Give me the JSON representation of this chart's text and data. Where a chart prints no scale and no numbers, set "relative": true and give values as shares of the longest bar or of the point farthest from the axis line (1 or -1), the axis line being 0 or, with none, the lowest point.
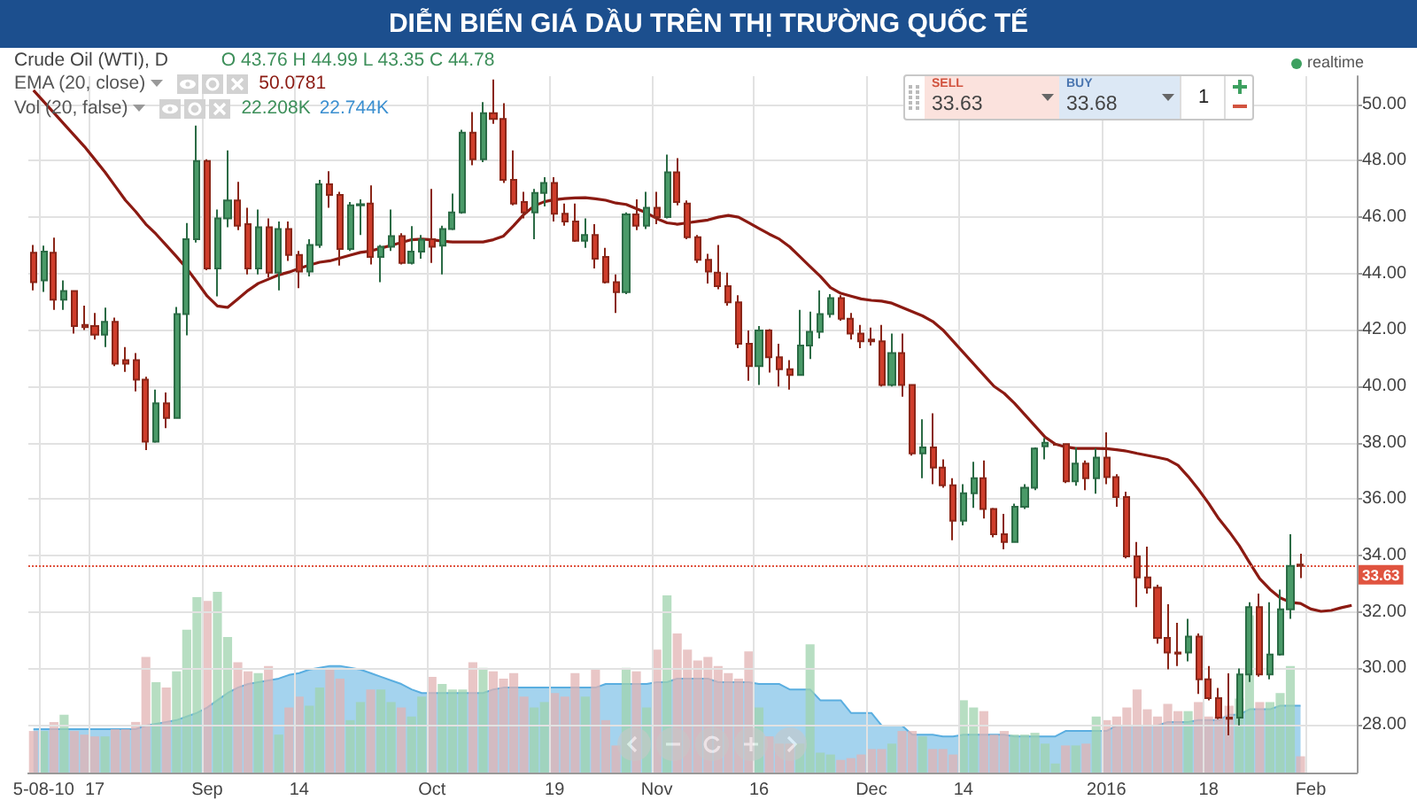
{
  "chart_data": [
    {
      "type": "candlestick",
      "title": "DIỄN BIẾN GIÁ DẦU TRÊN THỊ TRƯỜNG QUỐC TẾ",
      "categories": [
        null,
        "5-08-10",
        null,
        null,
        null,
        null,
        "17",
        null,
        null,
        null,
        null,
        null,
        null,
        null,
        null,
        null,
        null,
        "Sep",
        null,
        null,
        null,
        null,
        null,
        null,
        null,
        null,
        "14",
        null,
        null,
        null,
        null,
        null,
        null,
        null,
        null,
        null,
        null,
        null,
        null,
        "Oct",
        null,
        null,
        null,
        null,
        null,
        null,
        null,
        null,
        null,
        null,
        null,
        "19",
        null,
        null,
        null,
        null,
        null,
        null,
        null,
        null,
        null,
        "Nov",
        null,
        null,
        null,
        null,
        null,
        null,
        null,
        null,
        null,
        "16",
        null,
        null,
        null,
        null,
        null,
        null,
        null,
        null,
        null,
        null,
        "Dec",
        null,
        null,
        null,
        null,
        null,
        null,
        null,
        null,
        "14",
        null,
        null,
        null,
        null,
        null,
        null,
        null,
        null,
        null,
        null,
        null,
        null,
        null,
        "2016",
        null,
        null,
        null,
        null,
        null,
        null,
        null,
        null,
        null,
        "18",
        null,
        null,
        null,
        null,
        null,
        null,
        null,
        null,
        null,
        "Feb",
        null,
        null,
        null,
        null
      ],
      "ohlc": [
        [
          44.74,
          45.01,
          43.4,
          43.69
        ],
        [
          43.76,
          44.99,
          43.35,
          44.78
        ],
        [
          44.74,
          45.27,
          42.71,
          43.07
        ],
        [
          43.07,
          43.76,
          42.71,
          43.38
        ],
        [
          43.38,
          43.4,
          41.87,
          42.14
        ],
        [
          42.18,
          42.86,
          42.0,
          42.1
        ],
        [
          42.14,
          42.6,
          41.66,
          41.83
        ],
        [
          41.83,
          42.79,
          41.39,
          42.29
        ],
        [
          42.29,
          42.44,
          40.72,
          40.8
        ],
        [
          40.93,
          41.39,
          40.51,
          40.8
        ],
        [
          40.93,
          41.18,
          39.82,
          40.24
        ],
        [
          40.24,
          40.34,
          37.74,
          38.04
        ],
        [
          38.04,
          39.88,
          38.0,
          39.4
        ],
        [
          39.4,
          39.78,
          38.52,
          38.88
        ],
        [
          38.88,
          42.81,
          38.85,
          42.56
        ],
        [
          42.56,
          45.79,
          41.81,
          45.22
        ],
        [
          45.22,
          49.25,
          45.1,
          47.99
        ],
        [
          47.99,
          48.05,
          44.12,
          44.18
        ],
        [
          44.18,
          46.27,
          43.19,
          45.96
        ],
        [
          45.96,
          48.37,
          45.64,
          46.59
        ],
        [
          46.59,
          47.25,
          45.54,
          45.7
        ],
        [
          45.75,
          46.33,
          43.97,
          44.18
        ],
        [
          44.18,
          46.27,
          43.97,
          45.64
        ],
        [
          45.64,
          45.96,
          43.86,
          44.03
        ],
        [
          44.03,
          45.85,
          43.4,
          45.58
        ],
        [
          45.58,
          45.85,
          44.45,
          44.66
        ],
        [
          44.66,
          44.8,
          43.48,
          44.07
        ],
        [
          44.07,
          45.22,
          43.9,
          45.01
        ],
        [
          45.01,
          47.32,
          44.91,
          47.17
        ],
        [
          47.17,
          47.63,
          46.33,
          46.79
        ],
        [
          46.79,
          46.9,
          44.28,
          44.87
        ],
        [
          44.87,
          46.54,
          44.8,
          46.42
        ],
        [
          46.42,
          46.63,
          45.37,
          46.46
        ],
        [
          46.48,
          47.13,
          44.32,
          44.59
        ],
        [
          44.59,
          45.01,
          43.69,
          44.95
        ],
        [
          44.95,
          46.27,
          44.8,
          45.33
        ],
        [
          45.33,
          45.43,
          44.32,
          44.38
        ],
        [
          44.38,
          45.68,
          44.32,
          44.78
        ],
        [
          44.78,
          45.37,
          44.53,
          45.2
        ],
        [
          45.22,
          47.0,
          44.38,
          44.95
        ],
        [
          44.99,
          45.7,
          43.97,
          45.58
        ],
        [
          45.58,
          46.84,
          45.54,
          46.17
        ],
        [
          46.17,
          49.1,
          46.12,
          49.0
        ],
        [
          49.0,
          49.73,
          47.84,
          48.05
        ],
        [
          48.05,
          50.08,
          47.95,
          49.69
        ],
        [
          49.69,
          50.88,
          49.31,
          49.48
        ],
        [
          49.48,
          50.04,
          47.21,
          47.32
        ],
        [
          47.32,
          48.37,
          46.42,
          46.48
        ],
        [
          46.54,
          46.9,
          45.96,
          46.17
        ],
        [
          46.17,
          47.0,
          45.22,
          46.86
        ],
        [
          46.86,
          47.42,
          46.38,
          47.21
        ],
        [
          47.21,
          47.42,
          45.85,
          46.12
        ],
        [
          46.12,
          46.48,
          45.7,
          45.85
        ],
        [
          45.85,
          46.48,
          45.12,
          45.16
        ],
        [
          45.16,
          45.96,
          44.91,
          45.37
        ],
        [
          45.37,
          45.75,
          44.18,
          44.53
        ],
        [
          44.59,
          44.91,
          43.65,
          43.69
        ],
        [
          43.69,
          43.97,
          42.6,
          43.34
        ],
        [
          43.34,
          46.17,
          43.27,
          46.1
        ],
        [
          46.1,
          46.63,
          45.54,
          45.7
        ],
        [
          45.7,
          46.9,
          45.58,
          46.33
        ],
        [
          46.33,
          46.9,
          45.75,
          46.0
        ],
        [
          46.0,
          48.22,
          45.96,
          47.59
        ],
        [
          47.59,
          48.09,
          46.42,
          46.54
        ],
        [
          46.48,
          46.59,
          45.22,
          45.29
        ],
        [
          45.29,
          45.37,
          44.38,
          44.49
        ],
        [
          44.49,
          44.7,
          43.65,
          44.07
        ],
        [
          44.03,
          45.01,
          43.44,
          43.55
        ],
        [
          43.55,
          44.03,
          42.86,
          42.98
        ],
        [
          42.98,
          43.23,
          41.35,
          41.51
        ],
        [
          41.51,
          41.98,
          40.2,
          40.72
        ],
        [
          40.72,
          42.14,
          40.05,
          41.98
        ],
        [
          41.98,
          42.03,
          40.49,
          41.03
        ],
        [
          41.03,
          41.51,
          39.99,
          40.61
        ],
        [
          40.61,
          40.93,
          39.88,
          40.4
        ],
        [
          40.4,
          42.71,
          40.38,
          41.45
        ],
        [
          41.45,
          42.65,
          40.97,
          41.93
        ],
        [
          41.93,
          43.4,
          41.7,
          42.56
        ],
        [
          42.56,
          43.27,
          42.44,
          43.13
        ],
        [
          43.13,
          43.23,
          42.33,
          42.4
        ],
        [
          42.4,
          42.6,
          41.66,
          41.87
        ],
        [
          41.87,
          42.18,
          41.35,
          41.6
        ],
        [
          41.66,
          42.08,
          41.45,
          41.6
        ],
        [
          41.6,
          42.18,
          39.99,
          40.05
        ],
        [
          40.05,
          41.87,
          39.99,
          41.18
        ],
        [
          41.18,
          41.87,
          39.63,
          40.05
        ],
        [
          40.05,
          40.05,
          37.54,
          37.62
        ],
        [
          37.62,
          38.83,
          36.74,
          37.83
        ],
        [
          37.83,
          39.04,
          36.53,
          37.12
        ],
        [
          37.12,
          37.41,
          36.4,
          36.49
        ],
        [
          36.49,
          36.74,
          34.54,
          35.23
        ],
        [
          35.23,
          36.53,
          35.07,
          36.21
        ],
        [
          36.21,
          37.32,
          35.69,
          36.74
        ],
        [
          36.74,
          37.37,
          35.31,
          35.65
        ],
        [
          35.65,
          35.69,
          34.64,
          34.75
        ],
        [
          34.75,
          35.48,
          34.22,
          34.48
        ],
        [
          34.48,
          35.84,
          34.48,
          35.73
        ],
        [
          35.73,
          36.53,
          35.65,
          36.4
        ],
        [
          36.4,
          37.83,
          36.32,
          37.79
        ],
        [
          37.87,
          38.16,
          37.41,
          38.0
        ],
        [
          37.93,
          37.98,
          37.9,
          37.93
        ],
        [
          37.95,
          37.95,
          36.57,
          36.63
        ],
        [
          36.63,
          37.83,
          36.47,
          37.26
        ],
        [
          37.26,
          37.37,
          36.32,
          36.74
        ],
        [
          36.74,
          37.79,
          36.19,
          37.47
        ],
        [
          37.47,
          38.37,
          36.53,
          36.78
        ],
        [
          36.78,
          36.88,
          35.73,
          36.07
        ],
        [
          36.07,
          36.26,
          33.9,
          33.97
        ],
        [
          33.97,
          34.48,
          32.17,
          33.22
        ],
        [
          33.22,
          34.31,
          32.65,
          32.86
        ],
        [
          32.86,
          32.96,
          30.87,
          31.08
        ],
        [
          31.08,
          32.27,
          29.96,
          30.56
        ],
        [
          30.56,
          31.61,
          30.08,
          30.52
        ],
        [
          30.56,
          31.75,
          30.24,
          31.12
        ],
        [
          31.12,
          31.23,
          29.09,
          29.61
        ],
        [
          29.61,
          30.08,
          28.86,
          28.94
        ],
        [
          28.94,
          29.3,
          28.19,
          28.25
        ],
        [
          28.25,
          29.82,
          27.62,
          28.21
        ],
        [
          28.25,
          29.99,
          27.97,
          29.78
        ],
        [
          29.78,
          32.34,
          29.51,
          32.17
        ],
        [
          32.17,
          32.65,
          29.7,
          29.78
        ],
        [
          29.78,
          32.34,
          29.61,
          30.49
        ],
        [
          30.49,
          32.79,
          30.45,
          32.09
        ],
        [
          32.09,
          34.75,
          31.75,
          33.63
        ],
        [
          33.68,
          34.06,
          33.2,
          33.63
        ],
        null,
        null,
        null,
        null,
        null
      ],
      "series": [
        {
          "name": "EMA (20, close)",
          "type": "line",
          "color": "#8b1a12",
          "values": [
            50.5,
            50.1,
            49.7,
            49.3,
            48.9,
            48.5,
            48.05,
            47.6,
            47.1,
            46.6,
            46.2,
            45.75,
            45.4,
            45.0,
            44.6,
            44.18,
            43.7,
            43.2,
            42.85,
            42.8,
            43.1,
            43.4,
            43.65,
            43.8,
            43.95,
            44.05,
            44.18,
            44.3,
            44.4,
            44.45,
            44.55,
            44.65,
            44.75,
            44.8,
            44.9,
            45.0,
            45.1,
            45.2,
            45.22,
            45.2,
            45.15,
            45.12,
            45.12,
            45.12,
            45.12,
            45.2,
            45.33,
            45.7,
            46.1,
            46.4,
            46.55,
            46.62,
            46.66,
            46.68,
            46.69,
            46.65,
            46.6,
            46.5,
            46.45,
            46.3,
            46.15,
            45.95,
            45.8,
            45.75,
            45.8,
            45.85,
            45.9,
            46.0,
            46.06,
            46.0,
            45.8,
            45.6,
            45.4,
            45.22,
            44.95,
            44.6,
            44.25,
            43.9,
            43.5,
            43.3,
            43.2,
            43.1,
            43.05,
            43.02,
            42.95,
            42.8,
            42.65,
            42.5,
            42.3,
            42.0,
            41.6,
            41.2,
            40.8,
            40.4,
            40.0,
            39.75,
            39.4,
            39.0,
            38.6,
            38.2,
            37.95,
            37.85,
            37.8,
            37.8,
            37.8,
            37.79,
            37.75,
            37.7,
            37.62,
            37.55,
            37.48,
            37.4,
            37.2,
            36.8,
            36.35,
            35.85,
            35.3,
            34.85,
            34.35,
            33.75,
            33.18,
            32.8,
            32.5,
            32.34,
            32.3,
            32.1,
            32.02,
            32.05,
            32.15,
            32.23
          ]
        }
      ],
      "ylim": [
        26.3,
        51.0
      ],
      "yticks": [
        {
          "value": 28,
          "label": "28.00"
        },
        {
          "value": 30,
          "label": "30.00"
        },
        {
          "value": 32,
          "label": "32.00"
        },
        {
          "value": 34,
          "label": "34.00"
        },
        {
          "value": 36,
          "label": "36.00"
        },
        {
          "value": 38,
          "label": "38.00"
        },
        {
          "value": 40,
          "label": "40.00"
        },
        {
          "value": 42,
          "label": "42.00"
        },
        {
          "value": 44,
          "label": "44.00"
        },
        {
          "value": 46,
          "label": "46.00"
        },
        {
          "value": 48,
          "label": "48.00"
        },
        {
          "value": 50,
          "label": "50.00"
        }
      ],
      "ref_lines": [
        {
          "axis": "y",
          "value": 33.63,
          "label": "33.63",
          "color": "#e0533f",
          "line_style": "dotted"
        }
      ],
      "grid": true,
      "legend": "top left",
      "annotations": [
        "Crude Oil (WTI), D",
        "O 43.76 H 44.99 L 43.35 C 44.78",
        "50.0781",
        "SELL",
        "33.63",
        "BUY",
        "33.68",
        "1",
        "realtime"
      ]
    },
    {
      "type": "bar",
      "relative": true,
      "legend": "top left",
      "categories": [
        null,
        null,
        null,
        null,
        null,
        null,
        null,
        null,
        null,
        null,
        null,
        null,
        null,
        null,
        null,
        null,
        null,
        null,
        null,
        null,
        null,
        null,
        null,
        null,
        null,
        null,
        null,
        null,
        null,
        null,
        null,
        null,
        null,
        null,
        null,
        null,
        null,
        null,
        null,
        null,
        null,
        null,
        null,
        null,
        null,
        null,
        null,
        null,
        null,
        null,
        null,
        null,
        null,
        null,
        null,
        null,
        null,
        null,
        null,
        null,
        null,
        null,
        null,
        null,
        null,
        null,
        null,
        null,
        null,
        null,
        null,
        null,
        null,
        null,
        null,
        null,
        null,
        null,
        null,
        null,
        null,
        null,
        null,
        null,
        null,
        null,
        null,
        null,
        null,
        null,
        null,
        null,
        null,
        null,
        null,
        null,
        null,
        null,
        null,
        null,
        null,
        null,
        null,
        null,
        null,
        null,
        null,
        null,
        null,
        null,
        null,
        null,
        null,
        null,
        null,
        null,
        null,
        null,
        null,
        null,
        null,
        null,
        null,
        null,
        null,
        null,
        null,
        null,
        null,
        null
      ],
      "series": [
        {
          "name": "Vol (20, false)",
          "type": "bar",
          "values": [
            0.23,
            0.23,
            0.28,
            0.32,
            0.23,
            0.21,
            0.2,
            0.2,
            0.24,
            0.24,
            0.28,
            0.64,
            0.5,
            0.47,
            0.56,
            0.79,
            0.97,
            0.95,
            1,
            0.75,
            0.61,
            0.56,
            0.55,
            0.59,
            0.21,
            0.36,
            0.42,
            0.37,
            0.47,
            0.57,
            0.52,
            0.29,
            0.39,
            0.46,
            0.46,
            0.39,
            0.36,
            0.31,
            0.42,
            0.53,
            0.49,
            0.46,
            0.46,
            0.61,
            0.58,
            0.56,
            0.52,
            0.55,
            0.42,
            0.36,
            0.39,
            0.44,
            0.42,
            0.55,
            0.42,
            0.57,
            0.29,
            0.15,
            0.58,
            0.56,
            0.36,
            0.68,
            0.98,
            0.77,
            0.68,
            0.62,
            0.64,
            0.59,
            0.55,
            0.52,
            0.67,
            0.36,
            0.2,
            0.16,
            0.16,
            0.16,
            0.71,
            0.11,
            0.1,
            0.07,
            0.08,
            0.1,
            0.13,
            0.13,
            0.16,
            0.23,
            0.23,
            0.2,
            0.13,
            0.13,
            0.1,
            0.4,
            0.36,
            0.34,
            0.21,
            0.23,
            0.21,
            0.21,
            0.22,
            0.16,
            0.05,
            0.15,
            0.15,
            0.16,
            0.31,
            0.29,
            0.31,
            0.36,
            0.46,
            0.35,
            0.31,
            0.38,
            0.34,
            0.34,
            0.39,
            0.31,
            0.31,
            0.37,
            0.41,
            0.87,
            0.39,
            0.39,
            0.44,
            0.59,
            0.09,
            null,
            null,
            null,
            null,
            null
          ],
          "colors": [
            "#e2b3b3",
            "#9fd3ae",
            "#e2b3b3",
            "#9fd3ae",
            "#e2b3b3",
            "#e2b3b3",
            "#e2b3b3",
            "#9fd3ae",
            "#e2b3b3",
            "#e2b3b3",
            "#e2b3b3",
            "#e2b3b3",
            "#9fd3ae",
            "#e2b3b3",
            "#9fd3ae",
            "#9fd3ae",
            "#9fd3ae",
            "#e2b3b3",
            "#9fd3ae",
            "#9fd3ae",
            "#e2b3b3",
            "#e2b3b3",
            "#9fd3ae",
            "#e2b3b3",
            "#9fd3ae",
            "#e2b3b3",
            "#e2b3b3",
            "#9fd3ae",
            "#9fd3ae",
            "#e2b3b3",
            "#e2b3b3",
            "#9fd3ae",
            "#9fd3ae",
            "#e2b3b3",
            "#9fd3ae",
            "#9fd3ae",
            "#e2b3b3",
            "#9fd3ae",
            "#9fd3ae",
            "#e2b3b3",
            "#9fd3ae",
            "#9fd3ae",
            "#9fd3ae",
            "#e2b3b3",
            "#9fd3ae",
            "#e2b3b3",
            "#e2b3b3",
            "#e2b3b3",
            "#e2b3b3",
            "#9fd3ae",
            "#9fd3ae",
            "#e2b3b3",
            "#e2b3b3",
            "#e2b3b3",
            "#9fd3ae",
            "#e2b3b3",
            "#e2b3b3",
            "#e2b3b3",
            "#9fd3ae",
            "#e2b3b3",
            "#9fd3ae",
            "#e2b3b3",
            "#9fd3ae",
            "#e2b3b3",
            "#e2b3b3",
            "#e2b3b3",
            "#e2b3b3",
            "#e2b3b3",
            "#e2b3b3",
            "#e2b3b3",
            "#e2b3b3",
            "#9fd3ae",
            "#e2b3b3",
            "#e2b3b3",
            "#e2b3b3",
            "#9fd3ae",
            "#9fd3ae",
            "#9fd3ae",
            "#9fd3ae",
            "#e2b3b3",
            "#e2b3b3",
            "#e2b3b3",
            "#e2b3b3",
            "#e2b3b3",
            "#9fd3ae",
            "#e2b3b3",
            "#e2b3b3",
            "#9fd3ae",
            "#e2b3b3",
            "#e2b3b3",
            "#e2b3b3",
            "#9fd3ae",
            "#9fd3ae",
            "#e2b3b3",
            "#e2b3b3",
            "#e2b3b3",
            "#9fd3ae",
            "#9fd3ae",
            "#9fd3ae",
            "#9fd3ae",
            "#9fd3ae",
            "#e2b3b3",
            "#9fd3ae",
            "#e2b3b3",
            "#9fd3ae",
            "#e2b3b3",
            "#e2b3b3",
            "#e2b3b3",
            "#e2b3b3",
            "#e2b3b3",
            "#e2b3b3",
            "#e2b3b3",
            "#e2b3b3",
            "#9fd3ae",
            "#e2b3b3",
            "#e2b3b3",
            "#e2b3b3",
            "#e2b3b3",
            "#9fd3ae",
            "#9fd3ae",
            "#e2b3b3",
            "#9fd3ae",
            "#9fd3ae",
            "#9fd3ae",
            "#e2b3b3",
            null,
            null,
            null,
            null,
            null
          ]
        },
        {
          "type": "area",
          "color": "#5aaee0",
          "values": [
            0.24,
            0.24,
            0.24,
            0.24,
            0.24,
            0.24,
            0.24,
            0.24,
            0.24,
            0.24,
            0.24,
            0.26,
            0.27,
            0.28,
            0.29,
            0.31,
            0.33,
            0.36,
            0.4,
            0.44,
            0.47,
            0.49,
            0.5,
            0.51,
            0.52,
            0.54,
            0.55,
            0.57,
            0.58,
            0.59,
            0.59,
            0.58,
            0.57,
            0.55,
            0.53,
            0.51,
            0.49,
            0.46,
            0.44,
            0.44,
            0.44,
            0.44,
            0.44,
            0.44,
            0.44,
            0.46,
            0.47,
            0.47,
            0.47,
            0.47,
            0.47,
            0.47,
            0.47,
            0.47,
            0.47,
            0.47,
            0.49,
            0.49,
            0.49,
            0.49,
            0.49,
            0.5,
            0.5,
            0.52,
            0.52,
            0.52,
            0.52,
            0.5,
            0.5,
            0.5,
            0.5,
            0.49,
            0.49,
            0.49,
            0.46,
            0.46,
            0.46,
            0.4,
            0.4,
            0.4,
            0.33,
            0.33,
            0.33,
            0.26,
            0.26,
            0.26,
            0.21,
            0.21,
            0.21,
            0.2,
            0.2,
            0.21,
            0.21,
            0.21,
            0.21,
            0.21,
            0.2,
            0.2,
            0.2,
            0.2,
            0.2,
            0.23,
            0.23,
            0.23,
            0.23,
            0.23,
            0.26,
            0.26,
            0.26,
            0.26,
            0.26,
            0.28,
            0.28,
            0.28,
            0.29,
            0.29,
            0.29,
            0.32,
            0.32,
            0.35,
            0.35,
            0.35,
            0.37,
            0.37,
            0.37,
            null,
            null,
            null,
            null,
            null
          ]
        }
      ],
      "annotations": [
        "22.208K",
        "22.744K"
      ]
    }
  ]
}
